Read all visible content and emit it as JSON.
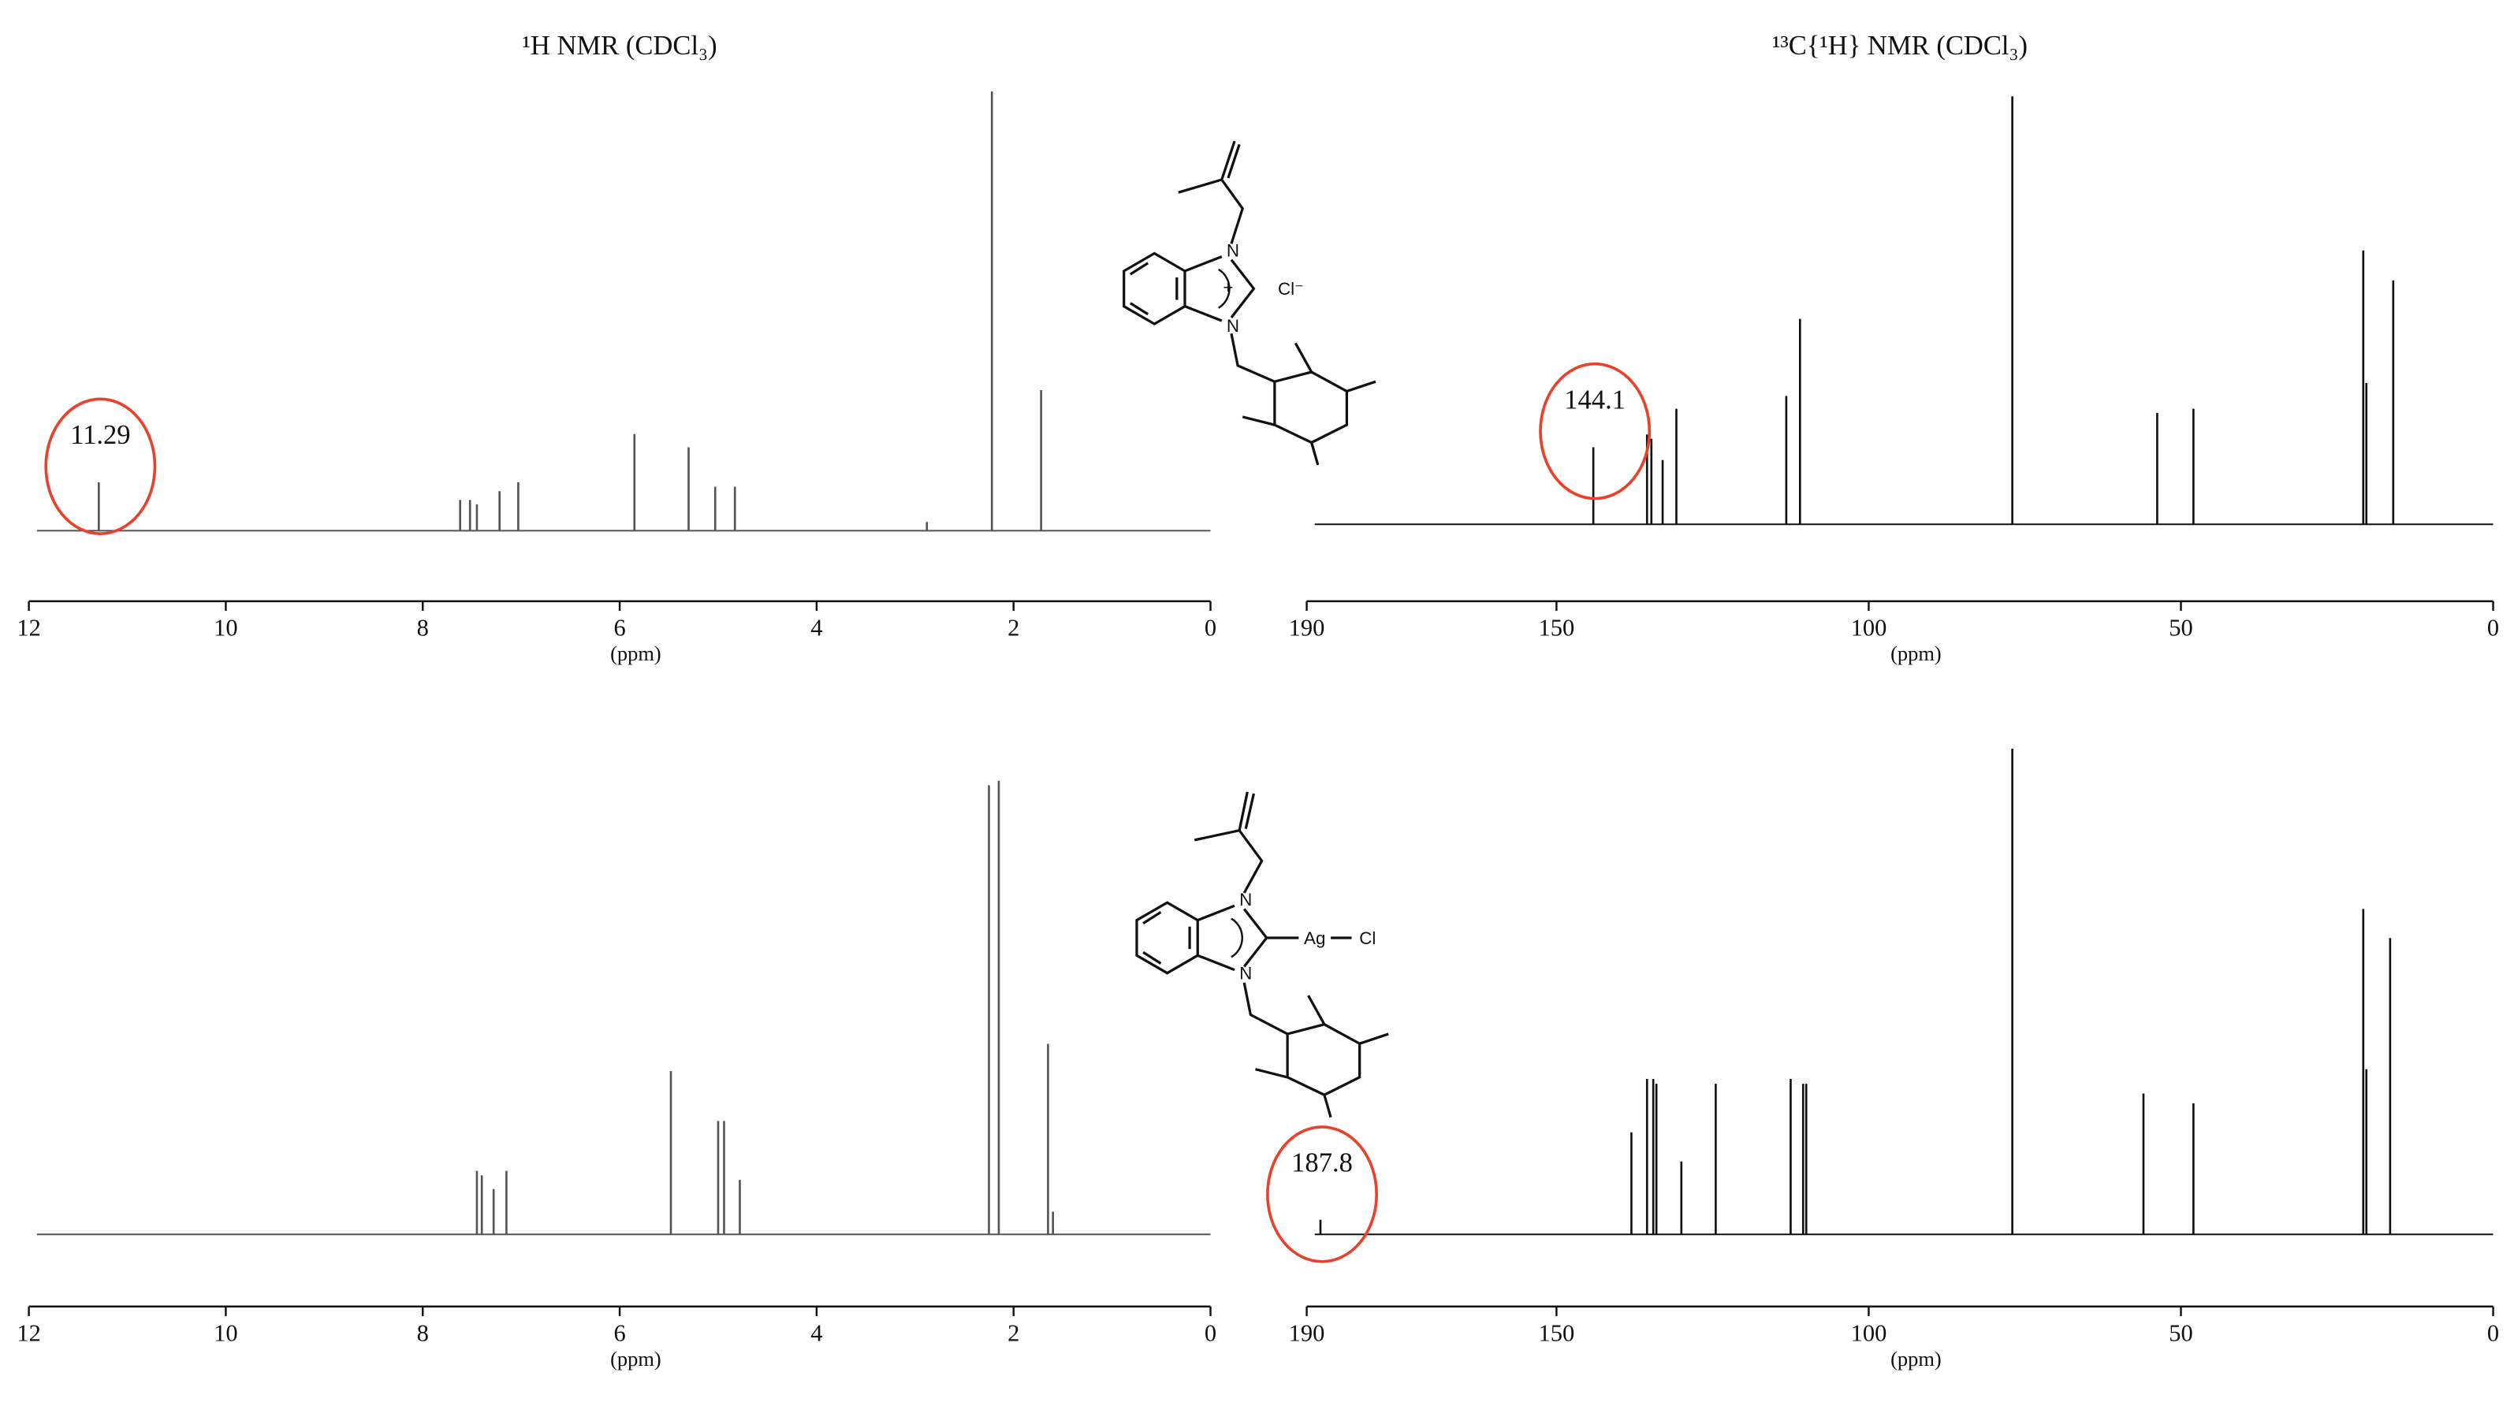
{
  "chart_data": [
    {
      "type": "spectrum",
      "title": "¹H NMR (CDCl₃)",
      "xlabel": "(ppm)",
      "xlim": [
        12,
        0
      ],
      "xticks": [
        12,
        10,
        8,
        6,
        4,
        2,
        0
      ],
      "ylim": [
        0,
        100
      ],
      "x": [
        11.29,
        7.62,
        7.52,
        7.45,
        7.22,
        7.03,
        5.85,
        5.3,
        5.03,
        4.83,
        2.88,
        2.22,
        1.72
      ],
      "values": [
        11,
        7,
        7,
        6,
        9,
        11,
        22,
        19,
        10,
        10,
        2,
        100,
        32
      ],
      "color": "#555555",
      "annotation": "11.29"
    },
    {
      "type": "spectrum",
      "title": "¹³C{¹H} NMR (CDCl₃)",
      "xlabel": "(ppm)",
      "xlim": [
        190,
        0
      ],
      "xticks": [
        190,
        150,
        100,
        50,
        0
      ],
      "ylim": [
        0,
        100
      ],
      "x": [
        144.1,
        135.5,
        134.8,
        133.0,
        130.8,
        113.2,
        111.0,
        77.0,
        53.8,
        48.0,
        20.8,
        20.3,
        16.0
      ],
      "values": [
        18,
        21,
        20,
        15,
        27,
        30,
        48,
        100,
        26,
        27,
        64,
        33,
        57
      ],
      "color": "#111111",
      "annotation": "144.1"
    },
    {
      "type": "spectrum",
      "xlabel": "(ppm)",
      "xlim": [
        12,
        0
      ],
      "xticks": [
        12,
        10,
        8,
        6,
        4,
        2,
        0
      ],
      "ylim": [
        0,
        100
      ],
      "x": [
        7.45,
        7.4,
        7.28,
        7.15,
        5.48,
        5.0,
        4.94,
        4.78,
        2.25,
        2.15,
        1.65,
        1.6
      ],
      "values": [
        14,
        13,
        10,
        14,
        36,
        25,
        25,
        12,
        99,
        100,
        42,
        5
      ],
      "color": "#555555"
    },
    {
      "type": "spectrum",
      "xlabel": "(ppm)",
      "xlim": [
        190,
        0
      ],
      "xticks": [
        190,
        150,
        100,
        50,
        0
      ],
      "ylim": [
        0,
        100
      ],
      "x": [
        187.8,
        138.0,
        135.5,
        134.5,
        134.0,
        130.0,
        124.5,
        112.5,
        110.5,
        110.0,
        77.0,
        56.0,
        48.0,
        20.8,
        20.3,
        16.5
      ],
      "values": [
        3,
        21,
        32,
        32,
        31,
        15,
        31,
        32,
        31,
        31,
        100,
        29,
        27,
        67,
        34,
        61
      ],
      "color": "#111111",
      "annotation": "187.8"
    }
  ],
  "structures": [
    {
      "labels": [
        "N",
        "N",
        "+",
        "Cl⁻"
      ]
    },
    {
      "labels": [
        "N",
        "N",
        "Ag",
        "Cl"
      ]
    }
  ]
}
